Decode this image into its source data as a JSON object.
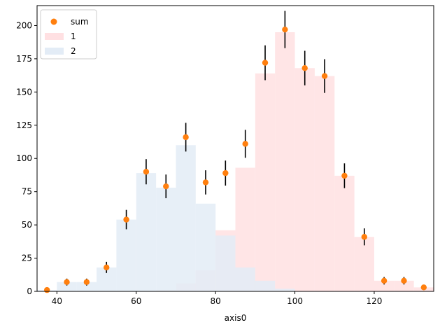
{
  "chart_data": {
    "type": "bar",
    "title": "",
    "xlabel": "axis0",
    "ylabel": "",
    "xlim": [
      35,
      135
    ],
    "ylim": [
      0,
      215
    ],
    "xticks": [
      40,
      60,
      80,
      100,
      120
    ],
    "yticks": [
      0,
      25,
      50,
      75,
      100,
      125,
      150,
      175,
      200
    ],
    "grid": false,
    "legend_position": "top-left",
    "bin_edges": [
      35,
      40,
      45,
      50,
      55,
      60,
      65,
      70,
      75,
      80,
      85,
      90,
      95,
      100,
      105,
      110,
      115,
      120,
      125,
      130,
      135
    ],
    "series": [
      {
        "name": "1",
        "kind": "stepfilled",
        "color": "#ffe0e2",
        "values": [
          0,
          0,
          0,
          0,
          0,
          0,
          1,
          6,
          16,
          46,
          93,
          164,
          195,
          168,
          162,
          87,
          41,
          8,
          8,
          3
        ]
      },
      {
        "name": "2",
        "kind": "stepfilled",
        "color": "#e3ecf6",
        "values": [
          1,
          7,
          7,
          18,
          54,
          89,
          78,
          110,
          66,
          42,
          18,
          8,
          2,
          0,
          0,
          0,
          0,
          0,
          0,
          0
        ]
      },
      {
        "name": "sum",
        "kind": "errorbar",
        "color": "#ff7f0e",
        "x": [
          37.5,
          42.5,
          47.5,
          52.5,
          57.5,
          62.5,
          67.5,
          72.5,
          77.5,
          82.5,
          87.5,
          92.5,
          97.5,
          102.5,
          107.5,
          112.5,
          117.5,
          122.5,
          127.5,
          132.5
        ],
        "y": [
          1,
          7,
          7,
          18,
          54,
          90,
          79,
          116,
          82,
          89,
          111,
          172,
          197,
          168,
          162,
          87,
          41,
          8,
          8,
          3
        ],
        "yerr": [
          1,
          2.6,
          2.6,
          4.2,
          7.3,
          9.5,
          8.9,
          10.8,
          9.1,
          9.4,
          10.5,
          13.1,
          14.0,
          13.0,
          12.7,
          9.3,
          6.4,
          2.8,
          2.8,
          1.7
        ]
      }
    ],
    "legend": [
      {
        "label": "sum",
        "marker": "circle",
        "color": "#ff7f0e"
      },
      {
        "label": "1",
        "marker": "patch",
        "color": "#ffe0e2"
      },
      {
        "label": "2",
        "marker": "patch",
        "color": "#e3ecf6"
      }
    ]
  }
}
